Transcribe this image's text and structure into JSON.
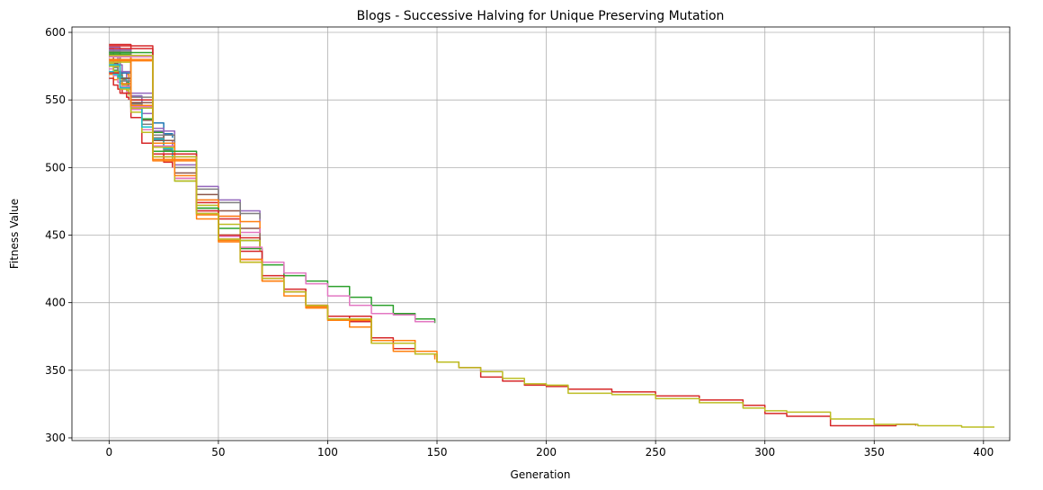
{
  "chart_data": {
    "type": "line",
    "title": "Blogs - Successive Halving for Unique Preserving Mutation",
    "xlabel": "Generation",
    "ylabel": "Fitness Value",
    "xlim": [
      -17,
      412
    ],
    "ylim": [
      298,
      604
    ],
    "xticks": [
      0,
      50,
      100,
      150,
      200,
      250,
      300,
      350,
      400
    ],
    "yticks": [
      300,
      350,
      400,
      450,
      500,
      550,
      600
    ],
    "grid": true,
    "colors": [
      "#1f77b4",
      "#ff7f0e",
      "#2ca02c",
      "#d62728",
      "#9467bd",
      "#8c564b",
      "#e377c2",
      "#7f7f7f",
      "#bcbd22",
      "#17becf"
    ],
    "series": [
      {
        "color": "#1f77b4",
        "x": [
          0,
          2,
          4,
          6,
          8,
          9
        ],
        "y": [
          578,
          570,
          566,
          562,
          560,
          558
        ]
      },
      {
        "color": "#ff7f0e",
        "x": [
          0,
          2,
          4,
          6,
          8,
          9
        ],
        "y": [
          569,
          565,
          568,
          566,
          569,
          562
        ]
      },
      {
        "color": "#2ca02c",
        "x": [
          0,
          2,
          4,
          6,
          8,
          9
        ],
        "y": [
          575,
          572,
          568,
          566,
          563,
          560
        ]
      },
      {
        "color": "#d62728",
        "x": [
          0,
          2,
          4,
          6,
          8,
          9
        ],
        "y": [
          566,
          561,
          558,
          555,
          552,
          550
        ]
      },
      {
        "color": "#9467bd",
        "x": [
          0,
          2,
          4,
          6,
          8,
          9
        ],
        "y": [
          588,
          582,
          576,
          570,
          566,
          564
        ]
      },
      {
        "color": "#8c564b",
        "x": [
          0,
          2,
          4,
          6,
          8,
          9
        ],
        "y": [
          583,
          577,
          571,
          566,
          561,
          558
        ]
      },
      {
        "color": "#e377c2",
        "x": [
          0,
          2,
          4,
          6,
          8,
          9
        ],
        "y": [
          573,
          568,
          563,
          559,
          556,
          554
        ]
      },
      {
        "color": "#7f7f7f",
        "x": [
          0,
          2,
          4,
          6,
          8,
          9
        ],
        "y": [
          580,
          574,
          569,
          565,
          561,
          559
        ]
      },
      {
        "color": "#bcbd22",
        "x": [
          0,
          2,
          4,
          6,
          8,
          9
        ],
        "y": [
          577,
          571,
          566,
          561,
          557,
          553
        ]
      },
      {
        "color": "#17becf",
        "x": [
          0,
          2,
          4,
          6,
          8,
          9
        ],
        "y": [
          571,
          569,
          567,
          566,
          564,
          563
        ]
      },
      {
        "color": "#1f77b4",
        "x": [
          0,
          5,
          10,
          15,
          20,
          25,
          29
        ],
        "y": [
          586,
          570,
          553,
          540,
          533,
          525,
          522
        ]
      },
      {
        "color": "#ff7f0e",
        "x": [
          0,
          5,
          10,
          15,
          20,
          25,
          29
        ],
        "y": [
          580,
          562,
          545,
          530,
          518,
          508,
          502
        ]
      },
      {
        "color": "#2ca02c",
        "x": [
          0,
          5,
          10,
          15,
          20,
          25,
          29
        ],
        "y": [
          583,
          566,
          550,
          536,
          526,
          518,
          512
        ]
      },
      {
        "color": "#d62728",
        "x": [
          0,
          5,
          10,
          15,
          20,
          25,
          29
        ],
        "y": [
          570,
          555,
          537,
          518,
          510,
          504,
          500
        ]
      },
      {
        "color": "#9467bd",
        "x": [
          0,
          5,
          10,
          15,
          20,
          25,
          29
        ],
        "y": [
          589,
          571,
          553,
          540,
          529,
          520,
          515
        ]
      },
      {
        "color": "#8c564b",
        "x": [
          0,
          5,
          10,
          15,
          20,
          25,
          29
        ],
        "y": [
          585,
          566,
          548,
          535,
          524,
          515,
          510
        ]
      },
      {
        "color": "#e377c2",
        "x": [
          0,
          5,
          10,
          15,
          20,
          25,
          29
        ],
        "y": [
          578,
          560,
          543,
          528,
          518,
          510,
          506
        ]
      },
      {
        "color": "#7f7f7f",
        "x": [
          0,
          5,
          10,
          15,
          20,
          25,
          29
        ],
        "y": [
          582,
          564,
          547,
          532,
          522,
          513,
          508
        ]
      },
      {
        "color": "#bcbd22",
        "x": [
          0,
          5,
          10,
          15,
          20,
          25,
          29
        ],
        "y": [
          575,
          558,
          541,
          526,
          520,
          515,
          505
        ]
      },
      {
        "color": "#17becf",
        "x": [
          0,
          5,
          10,
          15,
          20,
          25,
          29
        ],
        "y": [
          576,
          559,
          544,
          530,
          521,
          514,
          508
        ]
      },
      {
        "color": "#2ca02c",
        "x": [
          0,
          10,
          20,
          30,
          40,
          50,
          60,
          69
        ],
        "y": [
          584,
          545,
          515,
          490,
          470,
          455,
          446,
          442
        ]
      },
      {
        "color": "#d62728",
        "x": [
          0,
          10,
          20,
          30,
          40,
          50,
          60,
          69
        ],
        "y": [
          591,
          550,
          520,
          492,
          474,
          462,
          448,
          440
        ]
      },
      {
        "color": "#9467bd",
        "x": [
          0,
          10,
          20,
          30,
          40,
          50,
          60,
          69
        ],
        "y": [
          587,
          555,
          527,
          502,
          486,
          476,
          468,
          460
        ]
      },
      {
        "color": "#8c564b",
        "x": [
          0,
          10,
          20,
          30,
          40,
          50,
          60,
          69
        ],
        "y": [
          583,
          548,
          520,
          496,
          480,
          468,
          455,
          446
        ]
      },
      {
        "color": "#e377c2",
        "x": [
          0,
          10,
          20,
          30,
          40,
          50,
          60,
          69
        ],
        "y": [
          580,
          545,
          516,
          492,
          476,
          464,
          452,
          456
        ]
      },
      {
        "color": "#7f7f7f",
        "x": [
          0,
          10,
          20,
          30,
          40,
          50,
          60,
          69
        ],
        "y": [
          586,
          552,
          524,
          500,
          484,
          474,
          466,
          462
        ]
      },
      {
        "color": "#bcbd22",
        "x": [
          0,
          10,
          20,
          30,
          40,
          50,
          60,
          69
        ],
        "y": [
          578,
          544,
          515,
          490,
          472,
          458,
          446,
          438
        ]
      },
      {
        "color": "#ff7f0e",
        "x": [
          0,
          10,
          20,
          30,
          40,
          50,
          60,
          69
        ],
        "y": [
          582,
          546,
          518,
          494,
          476,
          464,
          460,
          455
        ]
      },
      {
        "color": "#2ca02c",
        "x": [
          0,
          20,
          40,
          50,
          60,
          70,
          80,
          90,
          100,
          110,
          120,
          130,
          140,
          149
        ],
        "y": [
          585,
          512,
          470,
          450,
          440,
          428,
          420,
          416,
          412,
          404,
          398,
          392,
          388,
          385
        ]
      },
      {
        "color": "#e377c2",
        "x": [
          0,
          20,
          40,
          50,
          60,
          70,
          80,
          90,
          100,
          110,
          120,
          130,
          140,
          149
        ],
        "y": [
          582,
          510,
          468,
          449,
          441,
          430,
          422,
          414,
          405,
          398,
          392,
          391,
          386,
          386
        ]
      },
      {
        "color": "#d62728",
        "x": [
          0,
          20,
          40,
          50,
          60,
          70,
          80,
          90,
          100,
          110,
          120,
          130,
          140,
          149
        ],
        "y": [
          588,
          508,
          466,
          447,
          432,
          418,
          410,
          398,
          390,
          386,
          374,
          366,
          362,
          360
        ]
      },
      {
        "color": "#ff7f0e",
        "x": [
          0,
          20,
          40,
          50,
          60,
          70,
          80,
          90,
          100,
          110,
          120,
          130,
          140,
          149
        ],
        "y": [
          580,
          505,
          462,
          445,
          430,
          416,
          408,
          397,
          388,
          382,
          370,
          364,
          362,
          358
        ]
      },
      {
        "color": "#d62728",
        "x": [
          0,
          20,
          40,
          50,
          60,
          70,
          80,
          90,
          100,
          120,
          140,
          150,
          160,
          170,
          180,
          190,
          200,
          210,
          230,
          250,
          270,
          290,
          300,
          310,
          330,
          350,
          360,
          369
        ],
        "y": [
          590,
          510,
          468,
          450,
          438,
          420,
          408,
          398,
          390,
          372,
          362,
          356,
          352,
          345,
          342,
          339,
          338,
          336,
          334,
          331,
          328,
          324,
          318,
          316,
          309,
          309,
          310,
          309
        ]
      },
      {
        "color": "#ff7f0e",
        "x": [
          0,
          20,
          40,
          50,
          60,
          70,
          80,
          90,
          100,
          120,
          140,
          150
        ],
        "y": [
          579,
          506,
          465,
          446,
          432,
          416,
          405,
          396,
          387,
          372,
          364,
          356
        ]
      },
      {
        "color": "#bcbd22",
        "x": [
          0,
          20,
          40,
          50,
          60,
          70,
          80,
          90,
          100,
          120,
          140,
          150,
          160,
          170,
          180,
          190,
          200,
          210,
          230,
          250,
          270,
          290,
          300,
          310,
          330,
          350,
          370,
          390,
          405
        ],
        "y": [
          583,
          508,
          466,
          447,
          430,
          418,
          408,
          398,
          388,
          370,
          362,
          356,
          352,
          349,
          344,
          340,
          339,
          333,
          332,
          329,
          326,
          322,
          320,
          319,
          314,
          310,
          309,
          308,
          308
        ]
      }
    ]
  }
}
